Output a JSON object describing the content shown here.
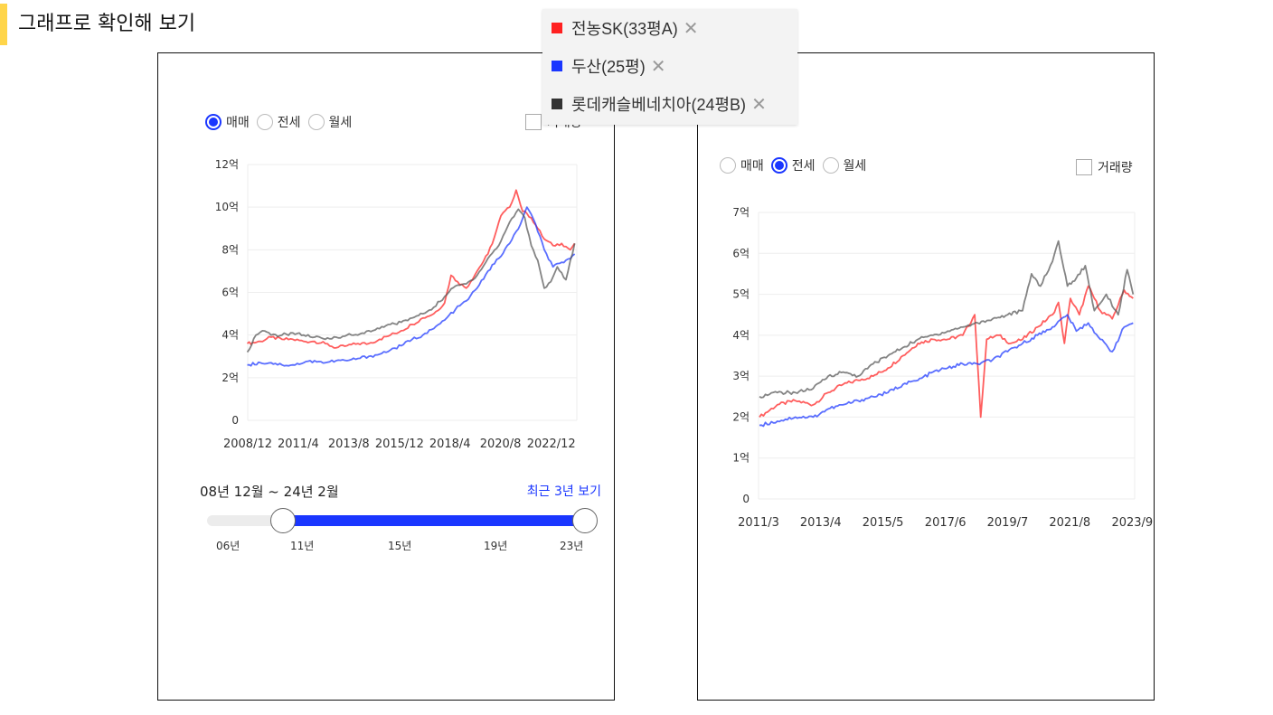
{
  "page": {
    "title": "그래프로 확인해 보기"
  },
  "legend": {
    "items": [
      {
        "label": "전농SK(33평A)",
        "color": "#ff2020",
        "close": "✕"
      },
      {
        "label": "두산(25평)",
        "color": "#1a36ff",
        "close": "✕"
      },
      {
        "label": "롯데캐슬베네치아(24평B)",
        "color": "#333333",
        "close": "✕"
      }
    ]
  },
  "left_panel": {
    "radios": [
      {
        "label": "매매",
        "selected": true
      },
      {
        "label": "전세",
        "selected": false
      },
      {
        "label": "월세",
        "selected": false
      }
    ],
    "volume_label": "거래량",
    "range_text": "08년 12월 ~ 24년 2월",
    "recent_link": "최근 3년 보기",
    "slider_ticks": [
      "06년",
      "11년",
      "15년",
      "19년",
      "23년"
    ],
    "slider_range": {
      "from_year": 2008.92,
      "to_year": 2024.1,
      "track_min": 2006,
      "track_max": 2024
    }
  },
  "right_panel": {
    "radios": [
      {
        "label": "매매",
        "selected": false
      },
      {
        "label": "전세",
        "selected": true
      },
      {
        "label": "월세",
        "selected": false
      }
    ],
    "volume_label": "거래량"
  },
  "chart_data": [
    {
      "type": "line",
      "title": "",
      "xlabel": "",
      "ylabel": "",
      "xlim": [
        2008.92,
        2024.1
      ],
      "ylim": [
        0,
        12
      ],
      "yticks": [
        0,
        2,
        4,
        6,
        8,
        10,
        12
      ],
      "ytick_labels": [
        "0",
        "2억",
        "4억",
        "6억",
        "8억",
        "10억",
        "12억"
      ],
      "xticks": [
        2008.92,
        2011.25,
        2013.58,
        2015.92,
        2018.25,
        2020.58,
        2022.92
      ],
      "xtick_labels": [
        "2008/12",
        "2011/4",
        "2013/8",
        "2015/12",
        "2018/4",
        "2020/8",
        "2022/12"
      ],
      "grid": true,
      "legend": "top-right",
      "series": [
        {
          "name": "전농SK(33평A)",
          "color": "#ff2020",
          "x": [
            2008.9,
            2009.5,
            2010.0,
            2010.5,
            2011.0,
            2011.5,
            2012.0,
            2012.5,
            2013.0,
            2013.5,
            2014.0,
            2014.5,
            2015.0,
            2015.5,
            2016.0,
            2016.5,
            2017.0,
            2017.5,
            2018.0,
            2018.3,
            2018.6,
            2019.0,
            2019.5,
            2020.0,
            2020.3,
            2020.6,
            2021.0,
            2021.3,
            2021.6,
            2021.8,
            2022.0,
            2022.3,
            2022.6,
            2023.0,
            2023.4,
            2023.8,
            2024.0
          ],
          "values": [
            3.6,
            3.7,
            3.9,
            3.8,
            3.8,
            3.7,
            3.7,
            3.6,
            3.4,
            3.5,
            3.6,
            3.6,
            3.8,
            4.0,
            4.2,
            4.5,
            4.8,
            5.0,
            5.5,
            6.8,
            6.5,
            6.2,
            7.0,
            7.8,
            8.6,
            9.6,
            10.0,
            10.8,
            9.8,
            9.7,
            9.5,
            9.0,
            8.5,
            8.2,
            8.3,
            8.0,
            8.3
          ]
        },
        {
          "name": "두산(25평)",
          "color": "#1a36ff",
          "x": [
            2008.9,
            2009.5,
            2010.0,
            2010.5,
            2011.0,
            2011.5,
            2012.0,
            2012.5,
            2013.0,
            2013.5,
            2014.0,
            2014.5,
            2015.0,
            2015.5,
            2016.0,
            2016.5,
            2017.0,
            2017.5,
            2018.0,
            2018.5,
            2019.0,
            2019.5,
            2020.0,
            2020.5,
            2021.0,
            2021.5,
            2021.8,
            2022.2,
            2022.6,
            2023.0,
            2023.5,
            2024.0
          ],
          "values": [
            2.6,
            2.7,
            2.7,
            2.6,
            2.6,
            2.7,
            2.8,
            2.7,
            2.8,
            2.8,
            2.9,
            3.0,
            3.1,
            3.3,
            3.5,
            3.8,
            4.0,
            4.3,
            4.7,
            5.2,
            5.6,
            6.2,
            7.0,
            7.6,
            8.3,
            9.2,
            10.0,
            9.2,
            8.0,
            7.2,
            7.4,
            7.8
          ]
        },
        {
          "name": "롯데캐슬베네치아(24평B)",
          "color": "#555555",
          "x": [
            2008.9,
            2009.3,
            2009.6,
            2010.0,
            2010.5,
            2011.0,
            2011.5,
            2012.0,
            2012.5,
            2013.0,
            2013.5,
            2014.0,
            2014.5,
            2015.0,
            2015.5,
            2016.0,
            2016.5,
            2017.0,
            2017.5,
            2018.0,
            2018.5,
            2019.0,
            2019.5,
            2020.0,
            2020.5,
            2021.0,
            2021.4,
            2021.7,
            2022.0,
            2022.3,
            2022.6,
            2022.9,
            2023.2,
            2023.6,
            2024.0
          ],
          "values": [
            3.2,
            4.0,
            4.2,
            4.0,
            4.0,
            4.1,
            4.0,
            3.9,
            3.8,
            3.9,
            4.0,
            4.0,
            4.2,
            4.3,
            4.5,
            4.6,
            4.8,
            5.0,
            5.3,
            5.8,
            6.3,
            6.4,
            6.8,
            7.6,
            8.2,
            9.3,
            9.9,
            9.5,
            8.2,
            7.5,
            6.2,
            6.5,
            7.2,
            6.6,
            8.3
          ]
        }
      ]
    },
    {
      "type": "line",
      "title": "",
      "xlabel": "",
      "ylabel": "",
      "xlim": [
        2011.17,
        2023.75
      ],
      "ylim": [
        0,
        7
      ],
      "yticks": [
        0,
        1,
        2,
        3,
        4,
        5,
        6,
        7
      ],
      "ytick_labels": [
        "0",
        "1억",
        "2억",
        "3억",
        "4억",
        "5억",
        "6억",
        "7억"
      ],
      "xticks": [
        2011.17,
        2013.25,
        2015.33,
        2017.42,
        2019.5,
        2021.58,
        2023.67
      ],
      "xtick_labels": [
        "2011/3",
        "2013/4",
        "2015/5",
        "2017/6",
        "2019/7",
        "2021/8",
        "2023/9"
      ],
      "grid": true,
      "series": [
        {
          "name": "전농SK(33평A)",
          "color": "#ff2020",
          "x": [
            2011.2,
            2011.8,
            2012.4,
            2013.0,
            2013.5,
            2014.0,
            2014.5,
            2015.0,
            2015.5,
            2016.0,
            2016.5,
            2017.0,
            2017.5,
            2018.0,
            2018.4,
            2018.6,
            2018.8,
            2019.2,
            2019.6,
            2020.0,
            2020.5,
            2021.0,
            2021.2,
            2021.4,
            2021.6,
            2021.9,
            2022.2,
            2022.6,
            2023.0,
            2023.4,
            2023.7
          ],
          "values": [
            2.0,
            2.3,
            2.4,
            2.3,
            2.6,
            2.8,
            2.9,
            3.0,
            3.2,
            3.5,
            3.8,
            3.9,
            3.9,
            4.0,
            4.5,
            2.0,
            3.9,
            4.0,
            3.8,
            3.9,
            4.2,
            4.5,
            4.8,
            3.8,
            4.9,
            4.5,
            5.2,
            4.6,
            4.4,
            5.1,
            4.9
          ]
        },
        {
          "name": "두산(25평)",
          "color": "#1a36ff",
          "x": [
            2011.2,
            2011.8,
            2012.4,
            2013.0,
            2013.5,
            2014.0,
            2014.5,
            2015.0,
            2015.5,
            2016.0,
            2016.5,
            2017.0,
            2017.5,
            2018.0,
            2018.5,
            2019.0,
            2019.5,
            2020.0,
            2020.5,
            2021.0,
            2021.5,
            2021.8,
            2022.2,
            2022.6,
            2023.0,
            2023.4,
            2023.7
          ],
          "values": [
            1.8,
            1.9,
            2.0,
            2.0,
            2.2,
            2.3,
            2.4,
            2.5,
            2.6,
            2.8,
            2.9,
            3.1,
            3.2,
            3.3,
            3.3,
            3.4,
            3.6,
            3.8,
            4.0,
            4.2,
            4.5,
            4.1,
            4.3,
            3.9,
            3.6,
            4.2,
            4.3
          ]
        },
        {
          "name": "롯데캐슬베네치아(24평B)",
          "color": "#555555",
          "x": [
            2011.2,
            2011.8,
            2012.4,
            2013.0,
            2013.5,
            2014.0,
            2014.5,
            2015.0,
            2015.5,
            2016.0,
            2016.5,
            2017.0,
            2017.5,
            2018.0,
            2018.5,
            2019.0,
            2019.5,
            2020.0,
            2020.3,
            2020.6,
            2021.0,
            2021.2,
            2021.5,
            2021.8,
            2022.1,
            2022.4,
            2022.8,
            2023.2,
            2023.5,
            2023.7
          ],
          "values": [
            2.5,
            2.6,
            2.6,
            2.7,
            3.0,
            3.1,
            3.0,
            3.3,
            3.5,
            3.7,
            3.9,
            4.0,
            4.1,
            4.2,
            4.3,
            4.4,
            4.5,
            4.6,
            5.5,
            5.2,
            5.8,
            6.3,
            5.2,
            5.4,
            5.7,
            4.6,
            5.0,
            4.5,
            5.6,
            5.0
          ]
        }
      ]
    }
  ]
}
